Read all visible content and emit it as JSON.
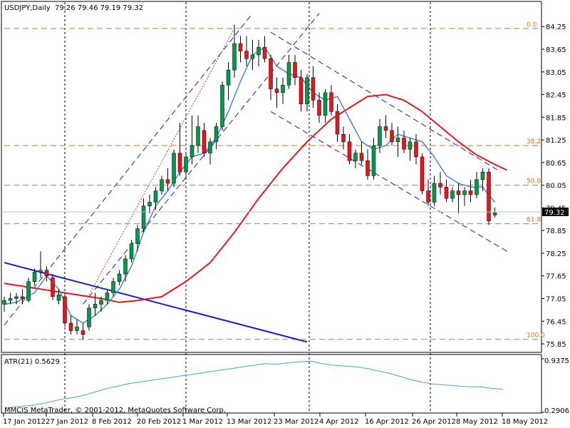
{
  "header": {
    "symbol_tf": "USDJPY,Daily",
    "ohlc": "79.26 79.46 79.19 79.32"
  },
  "atr_panel": {
    "label": "ATR(21) 0.5629",
    "axis_top": "0.9375",
    "axis_bottom": "0.2906"
  },
  "copyright": "MMCIS MetaTrader, © 2001-2012, MetaQuotes Software Corp.",
  "current_price": "79.32",
  "colors": {
    "bull": "#00994d",
    "bear": "#e8161c",
    "wick": "#000000",
    "ma_slow": "#e8161c",
    "ma_fast": "#4a86c8",
    "fib": "#e0701b",
    "channel": "#1a1aa8",
    "trendline": "#1a1ad6",
    "atr": "#4aa0dc"
  },
  "chart_data": {
    "type": "candlestick",
    "price_ylim": [
      75.7,
      84.5
    ],
    "price_ticks": [
      "84.25",
      "83.65",
      "83.05",
      "82.45",
      "81.85",
      "81.25",
      "80.65",
      "80.05",
      "79.45",
      "78.85",
      "78.25",
      "77.65",
      "77.05",
      "76.45",
      "75.85"
    ],
    "x_labels": [
      "17 Jan 2012",
      "27 Jan 2012",
      "8 Feb 2012",
      "20 Feb 2012",
      "1 Mar 2012",
      "13 Mar 2012",
      "23 Mar 2012",
      "4 Apr 2012",
      "16 Apr 2012",
      "26 Apr 2012",
      "8 May 2012",
      "18 May 2012"
    ],
    "fib_levels": [
      {
        "label": "0.0",
        "price": 84.2
      },
      {
        "label": "38.2",
        "price": 81.1
      },
      {
        "label": "50.0",
        "price": 80.05
      },
      {
        "label": "61.8",
        "price": 79.03
      },
      {
        "label": "100.0",
        "price": 75.97
      }
    ],
    "candles": [
      [
        76.9,
        77.1,
        76.7,
        77.0
      ],
      [
        77.0,
        77.2,
        76.9,
        77.05
      ],
      [
        77.05,
        77.2,
        76.9,
        77.1
      ],
      [
        77.1,
        77.3,
        76.9,
        77.05
      ],
      [
        77.0,
        77.6,
        76.95,
        77.5
      ],
      [
        77.5,
        77.85,
        77.4,
        77.75
      ],
      [
        77.75,
        78.3,
        77.6,
        77.8
      ],
      [
        77.8,
        77.9,
        77.5,
        77.65
      ],
      [
        77.6,
        77.7,
        77.0,
        77.1
      ],
      [
        77.0,
        77.3,
        76.9,
        77.15
      ],
      [
        77.1,
        77.2,
        76.3,
        76.4
      ],
      [
        76.4,
        76.6,
        76.1,
        76.2
      ],
      [
        76.2,
        76.5,
        76.1,
        76.3
      ],
      [
        76.2,
        76.4,
        75.97,
        76.1
      ],
      [
        76.3,
        76.9,
        76.2,
        76.8
      ],
      [
        76.8,
        77.2,
        76.6,
        76.9
      ],
      [
        76.9,
        77.1,
        76.7,
        77.0
      ],
      [
        77.0,
        77.3,
        76.9,
        77.2
      ],
      [
        77.2,
        77.6,
        77.1,
        77.5
      ],
      [
        77.5,
        77.8,
        77.4,
        77.7
      ],
      [
        77.7,
        78.2,
        77.5,
        78.1
      ],
      [
        78.1,
        78.6,
        78.0,
        78.5
      ],
      [
        78.5,
        79.0,
        78.3,
        78.9
      ],
      [
        78.9,
        79.7,
        78.8,
        79.5
      ],
      [
        79.5,
        79.8,
        79.3,
        79.6
      ],
      [
        79.6,
        80.0,
        79.4,
        79.9
      ],
      [
        79.9,
        80.3,
        79.8,
        80.2
      ],
      [
        80.2,
        80.5,
        79.9,
        80.1
      ],
      [
        80.1,
        81.0,
        80.0,
        80.9
      ],
      [
        80.9,
        81.7,
        80.3,
        80.4
      ],
      [
        80.4,
        80.9,
        80.2,
        80.8
      ],
      [
        80.8,
        81.9,
        80.6,
        81.1
      ],
      [
        81.1,
        81.9,
        80.9,
        81.6
      ],
      [
        81.5,
        81.7,
        80.8,
        80.9
      ],
      [
        80.9,
        81.3,
        80.6,
        81.2
      ],
      [
        81.2,
        81.7,
        81.0,
        81.6
      ],
      [
        81.6,
        82.8,
        81.5,
        82.7
      ],
      [
        82.7,
        83.3,
        82.3,
        83.1
      ],
      [
        83.1,
        84.3,
        82.9,
        83.8
      ],
      [
        83.8,
        84.0,
        83.3,
        83.6
      ],
      [
        83.6,
        84.0,
        83.2,
        83.4
      ],
      [
        83.4,
        83.9,
        83.1,
        83.5
      ],
      [
        83.5,
        83.9,
        83.2,
        83.7
      ],
      [
        83.7,
        84.0,
        83.3,
        83.4
      ],
      [
        83.4,
        83.5,
        82.3,
        82.6
      ],
      [
        82.6,
        82.9,
        82.1,
        82.5
      ],
      [
        82.5,
        82.9,
        82.2,
        82.7
      ],
      [
        82.7,
        83.5,
        82.6,
        83.3
      ],
      [
        83.3,
        83.5,
        82.7,
        82.9
      ],
      [
        82.9,
        83.1,
        82.0,
        82.2
      ],
      [
        82.2,
        83.0,
        82.0,
        82.9
      ],
      [
        82.9,
        83.2,
        82.1,
        82.3
      ],
      [
        82.3,
        82.5,
        81.7,
        81.9
      ],
      [
        81.9,
        82.6,
        81.7,
        82.5
      ],
      [
        82.5,
        82.7,
        81.9,
        82.0
      ],
      [
        82.0,
        82.2,
        81.2,
        81.4
      ],
      [
        81.4,
        81.6,
        81.0,
        81.2
      ],
      [
        81.2,
        81.4,
        80.6,
        80.7
      ],
      [
        80.7,
        81.0,
        80.5,
        80.9
      ],
      [
        80.9,
        81.2,
        80.6,
        80.7
      ],
      [
        80.7,
        81.0,
        80.2,
        80.3
      ],
      [
        80.3,
        81.3,
        80.2,
        81.1
      ],
      [
        81.1,
        81.8,
        80.9,
        81.6
      ],
      [
        81.6,
        81.9,
        81.3,
        81.5
      ],
      [
        81.5,
        81.7,
        81.1,
        81.2
      ],
      [
        81.2,
        81.6,
        80.8,
        81.3
      ],
      [
        81.3,
        81.5,
        80.9,
        81.0
      ],
      [
        81.0,
        81.3,
        80.7,
        81.2
      ],
      [
        81.2,
        81.4,
        80.6,
        80.8
      ],
      [
        80.8,
        80.9,
        79.8,
        79.9
      ],
      [
        79.9,
        80.2,
        79.5,
        79.6
      ],
      [
        79.6,
        80.3,
        79.5,
        80.1
      ],
      [
        80.1,
        80.4,
        79.8,
        80.0
      ],
      [
        80.0,
        80.2,
        79.6,
        79.7
      ],
      [
        79.7,
        80.0,
        79.6,
        79.9
      ],
      [
        79.9,
        80.1,
        79.3,
        79.8
      ],
      [
        79.8,
        80.0,
        79.5,
        79.9
      ],
      [
        79.9,
        80.2,
        79.6,
        79.8
      ],
      [
        79.8,
        80.4,
        79.7,
        80.2
      ],
      [
        80.2,
        80.5,
        79.9,
        80.4
      ],
      [
        80.4,
        80.5,
        79.0,
        79.1
      ],
      [
        79.26,
        79.46,
        79.19,
        79.32
      ]
    ],
    "ma_fast": [
      [
        0,
        76.9
      ],
      [
        2,
        76.95
      ],
      [
        5,
        77.2
      ],
      [
        7,
        77.65
      ],
      [
        9,
        77.3
      ],
      [
        11,
        76.6
      ],
      [
        13,
        76.4
      ],
      [
        15,
        76.6
      ],
      [
        17,
        76.9
      ],
      [
        19,
        77.3
      ],
      [
        21,
        77.9
      ],
      [
        23,
        78.8
      ],
      [
        25,
        79.5
      ],
      [
        27,
        79.9
      ],
      [
        29,
        80.4
      ],
      [
        31,
        80.8
      ],
      [
        33,
        80.9
      ],
      [
        35,
        81.3
      ],
      [
        37,
        82.0
      ],
      [
        39,
        82.8
      ],
      [
        41,
        83.5
      ],
      [
        43,
        83.7
      ],
      [
        45,
        83.2
      ],
      [
        47,
        83.0
      ],
      [
        49,
        82.9
      ],
      [
        51,
        82.5
      ],
      [
        53,
        82.3
      ],
      [
        55,
        82.4
      ],
      [
        57,
        81.8
      ],
      [
        59,
        81.2
      ],
      [
        61,
        81.0
      ],
      [
        63,
        81.1
      ],
      [
        65,
        81.4
      ],
      [
        67,
        81.3
      ],
      [
        69,
        81.2
      ],
      [
        71,
        80.8
      ],
      [
        73,
        80.3
      ],
      [
        75,
        80.1
      ],
      [
        77,
        80.0
      ],
      [
        79,
        80.0
      ],
      [
        81,
        79.6
      ]
    ],
    "ma_slow": [
      [
        0,
        77.45
      ],
      [
        4,
        77.35
      ],
      [
        8,
        77.25
      ],
      [
        12,
        77.15
      ],
      [
        16,
        77.05
      ],
      [
        19,
        76.95
      ],
      [
        22,
        77.0
      ],
      [
        26,
        77.1
      ],
      [
        30,
        77.5
      ],
      [
        34,
        78.0
      ],
      [
        38,
        78.8
      ],
      [
        42,
        79.7
      ],
      [
        46,
        80.5
      ],
      [
        50,
        81.2
      ],
      [
        54,
        81.8
      ],
      [
        57,
        82.1
      ],
      [
        60,
        82.4
      ],
      [
        63,
        82.45
      ],
      [
        66,
        82.3
      ],
      [
        69,
        82.0
      ],
      [
        72,
        81.6
      ],
      [
        75,
        81.2
      ],
      [
        78,
        80.85
      ],
      [
        81,
        80.6
      ],
      [
        83,
        80.45
      ]
    ],
    "atr": {
      "ylim": [
        0.2906,
        0.9375
      ],
      "values": [
        0.34,
        0.36,
        0.37,
        0.39,
        0.42,
        0.45,
        0.47,
        0.5,
        0.54,
        0.58,
        0.61,
        0.64,
        0.66,
        0.68,
        0.7,
        0.72,
        0.74,
        0.76,
        0.78,
        0.8,
        0.82,
        0.84,
        0.86,
        0.88,
        0.87,
        0.89,
        0.9,
        0.91,
        0.88,
        0.86,
        0.85,
        0.84,
        0.82,
        0.79,
        0.76,
        0.72,
        0.68,
        0.65,
        0.63,
        0.62,
        0.61,
        0.6,
        0.6,
        0.58,
        0.57
      ]
    }
  }
}
